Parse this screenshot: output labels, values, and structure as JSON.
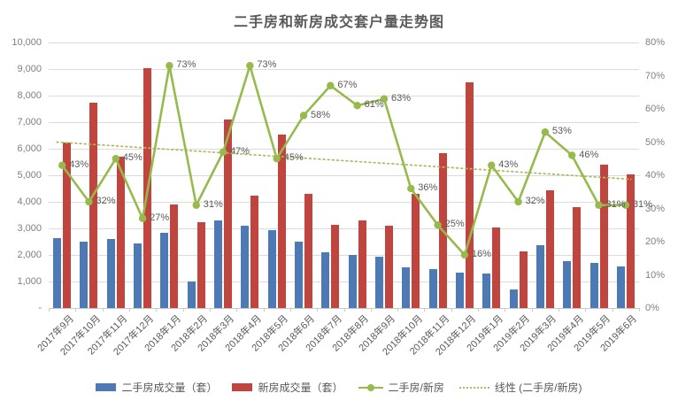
{
  "title": "二手房和新房成交套户量走势图",
  "legend": {
    "items": [
      {
        "label": "二手房成交量（套）",
        "type": "bar",
        "color_key": "bar_secondhand"
      },
      {
        "label": "新房成交量（套）",
        "type": "bar",
        "color_key": "bar_newhome"
      },
      {
        "label": "二手房/新房",
        "type": "line",
        "color_key": "ratio_line"
      },
      {
        "label": "线性 (二手房/新房)",
        "type": "trend",
        "color_key": "trend_line"
      }
    ]
  },
  "colors": {
    "bar_secondhand": "#4D79B5",
    "bar_newhome": "#C1453F",
    "ratio_line": "#96BA4C",
    "trend_line": "#B2B85E",
    "grid": "#DBDBDB",
    "axis_line": "#C9C9C9",
    "axis_text": "#7F7F7F",
    "label_text": "#595959",
    "title_text": "#595959"
  },
  "chart_data": {
    "type": "bar",
    "subtype": "clustered-bars + ratio line + dotted linear trendline, dual y-axis",
    "title": "二手房和新房成交套户量走势图",
    "categories": [
      "2017年9月",
      "2017年10月",
      "2017年11月",
      "2017年12月",
      "2018年1月",
      "2018年2月",
      "2018年3月",
      "2018年4月",
      "2018年5月",
      "2018年6月",
      "2018年7月",
      "2018年8月",
      "2018年9月",
      "2018年10月",
      "2018年11月",
      "2018年12月",
      "2019年1月",
      "2019年2月",
      "2019年3月",
      "2019年4月",
      "2019年5月",
      "2019年6月"
    ],
    "series": [
      {
        "name": "二手房成交量（套）",
        "type": "bar",
        "axis": "left",
        "values": [
          2650,
          2500,
          2600,
          2450,
          2850,
          1000,
          3300,
          3100,
          2950,
          2500,
          2100,
          2000,
          1950,
          1550,
          1460,
          1350,
          1300,
          700,
          2370,
          1760,
          1700,
          1560
        ]
      },
      {
        "name": "新房成交量（套）",
        "type": "bar",
        "axis": "left",
        "values": [
          6250,
          7750,
          5700,
          9050,
          3900,
          3250,
          7100,
          4250,
          6550,
          4300,
          3150,
          3300,
          3100,
          4300,
          5850,
          8500,
          3050,
          2150,
          4450,
          3800,
          5400,
          5050
        ]
      },
      {
        "name": "二手房/新房",
        "type": "line",
        "axis": "right",
        "values_pct": [
          43,
          32,
          45,
          27,
          73,
          31,
          47,
          73,
          45,
          58,
          67,
          61,
          63,
          36,
          25,
          16,
          43,
          32,
          53,
          46,
          31,
          31
        ],
        "labels": [
          "43%",
          "32%",
          "45%",
          "27%",
          "73%",
          "31%",
          "47%",
          "73%",
          "45%",
          "58%",
          "67%",
          "61%",
          "63%",
          "36%",
          "25%",
          "16%",
          "43%",
          "32%",
          "53%",
          "46%",
          "31%",
          "31%"
        ]
      },
      {
        "name": "线性 (二手房/新房)",
        "type": "trendline",
        "axis": "right",
        "style": "dotted",
        "start_pct": 50,
        "end_pct": 38.8
      }
    ],
    "left_axis": {
      "min": 0,
      "max": 10000,
      "step": 1000,
      "tick_labels": [
        "10,000",
        "9,000",
        "8,000",
        "7,000",
        "6,000",
        "5,000",
        "4,000",
        "3,000",
        "2,000",
        "1,000",
        "-"
      ]
    },
    "right_axis": {
      "min": 0,
      "max": 80,
      "step": 10,
      "tick_labels": [
        "80%",
        "70%",
        "60%",
        "50%",
        "40%",
        "30%",
        "20%",
        "10%",
        "0%"
      ]
    },
    "grid": "horizontal",
    "legend_position": "bottom"
  }
}
